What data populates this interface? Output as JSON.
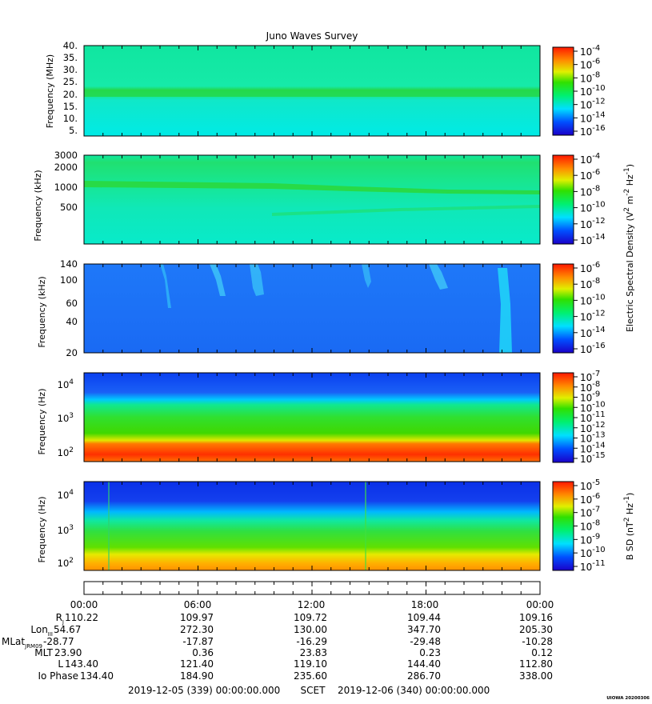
{
  "title": "Juno Waves Survey",
  "panels": [
    {
      "ylabel": "Frequency (MHz)",
      "yticks": [
        "40.",
        "35.",
        "30.",
        "25.",
        "20.",
        "15.",
        "10.",
        "5."
      ],
      "cbar_ticks": [
        {
          "b": "10",
          "e": "-4"
        },
        {
          "b": "10",
          "e": "-6"
        },
        {
          "b": "10",
          "e": "-8"
        },
        {
          "b": "10",
          "e": "-10"
        },
        {
          "b": "10",
          "e": "-12"
        },
        {
          "b": "10",
          "e": "-14"
        },
        {
          "b": "10",
          "e": "-16"
        }
      ]
    },
    {
      "ylabel": "Frequency (kHz)",
      "yticks": [
        "3000",
        "2000",
        "1000",
        "500"
      ],
      "cbar_ticks": [
        {
          "b": "10",
          "e": "-4"
        },
        {
          "b": "10",
          "e": "-6"
        },
        {
          "b": "10",
          "e": "-8"
        },
        {
          "b": "10",
          "e": "-10"
        },
        {
          "b": "10",
          "e": "-12"
        },
        {
          "b": "10",
          "e": "-14"
        }
      ]
    },
    {
      "ylabel": "Frequency (kHz)",
      "yticks": [
        "140",
        "100",
        "60",
        "40",
        "20"
      ],
      "cbar_ticks": [
        {
          "b": "10",
          "e": "-6"
        },
        {
          "b": "10",
          "e": "-8"
        },
        {
          "b": "10",
          "e": "-10"
        },
        {
          "b": "10",
          "e": "-12"
        },
        {
          "b": "10",
          "e": "-14"
        },
        {
          "b": "10",
          "e": "-16"
        }
      ]
    },
    {
      "ylabel": "Frequency (Hz)",
      "yticks": [
        {
          "b": "10",
          "e": "4"
        },
        {
          "b": "10",
          "e": "3"
        },
        {
          "b": "10",
          "e": "2"
        }
      ],
      "cbar_ticks": [
        {
          "b": "10",
          "e": "-7"
        },
        {
          "b": "10",
          "e": "-8"
        },
        {
          "b": "10",
          "e": "-9"
        },
        {
          "b": "10",
          "e": "-10"
        },
        {
          "b": "10",
          "e": "-11"
        },
        {
          "b": "10",
          "e": "-12"
        },
        {
          "b": "10",
          "e": "-13"
        },
        {
          "b": "10",
          "e": "-14"
        },
        {
          "b": "10",
          "e": "-15"
        }
      ]
    },
    {
      "ylabel": "Frequency (Hz)",
      "yticks": [
        {
          "b": "10",
          "e": "4"
        },
        {
          "b": "10",
          "e": "3"
        },
        {
          "b": "10",
          "e": "2"
        }
      ],
      "cbar_ticks": [
        {
          "b": "10",
          "e": "-5"
        },
        {
          "b": "10",
          "e": "-6"
        },
        {
          "b": "10",
          "e": "-7"
        },
        {
          "b": "10",
          "e": "-8"
        },
        {
          "b": "10",
          "e": "-9"
        },
        {
          "b": "10",
          "e": "-10"
        },
        {
          "b": "10",
          "e": "-11"
        }
      ]
    }
  ],
  "cbar_label_e": "Electric Spectral Density (V",
  "cbar_label_b": "B SD (nT",
  "time_ticks": [
    "00:00",
    "06:00",
    "12:00",
    "18:00",
    "00:00"
  ],
  "ephemeris": [
    {
      "label": "R",
      "sub": "J",
      "values": [
        "110.22",
        "109.97",
        "109.72",
        "109.44",
        "109.16"
      ]
    },
    {
      "label": "Lon",
      "sub": "III",
      "values": [
        "54.67",
        "272.30",
        "130.00",
        "347.70",
        "205.30"
      ]
    },
    {
      "label": "MLat",
      "sub": "JRM09",
      "values": [
        "-28.77",
        "-17.87",
        "-16.29",
        "-29.48",
        "-10.28"
      ]
    },
    {
      "label": "MLT",
      "sub": "",
      "values": [
        "23.90",
        "0.36",
        "23.83",
        "0.23",
        "0.12"
      ]
    },
    {
      "label": "L",
      "sub": "",
      "values": [
        "143.40",
        "121.40",
        "119.10",
        "144.40",
        "112.80"
      ]
    },
    {
      "label": "Io Phase",
      "sub": "",
      "values": [
        "134.40",
        "184.90",
        "235.60",
        "286.70",
        "338.00"
      ]
    }
  ],
  "footer": {
    "start": "2019-12-05 (339) 00:00:00.000",
    "mid": "SCET",
    "end": "2019-12-06 (340) 00:00:00.000"
  },
  "stamp": "UIOWA 20200306",
  "chart_data": [
    {
      "type": "heatmap",
      "title": "Juno Waves Survey",
      "ylabel": "Frequency (MHz)",
      "ylim": [
        3,
        41
      ],
      "x": [
        "00:00",
        "06:00",
        "12:00",
        "18:00",
        "00:00"
      ],
      "colorbar_range": [
        "1e-16",
        "1e-4"
      ],
      "features": [
        {
          "frequency_MHz": 21,
          "description": "constant band"
        }
      ]
    },
    {
      "type": "heatmap",
      "ylabel": "Frequency (kHz)",
      "ylim": [
        180,
        3000
      ],
      "yscale": "log",
      "colorbar_range": [
        "1e-14",
        "1e-4"
      ],
      "features": [
        {
          "frequency_kHz": 1100,
          "description": "emission band, first half"
        },
        {
          "frequency_kHz": 850,
          "description": "emission band, second half"
        }
      ]
    },
    {
      "type": "heatmap",
      "ylabel": "Frequency (kHz)",
      "ylim": [
        20,
        140
      ],
      "yscale": "log",
      "colorbar_range": [
        "1e-16",
        "1e-6"
      ]
    },
    {
      "type": "heatmap",
      "ylabel": "Frequency (Hz)",
      "ylim": [
        60,
        20000
      ],
      "yscale": "log",
      "colorbar_range": [
        "1e-15",
        "1e-7"
      ]
    },
    {
      "type": "heatmap",
      "ylabel": "Frequency (Hz)",
      "ylim": [
        50,
        25000
      ],
      "yscale": "log",
      "colorbar_range": [
        "1e-11",
        "1e-5"
      ]
    }
  ]
}
